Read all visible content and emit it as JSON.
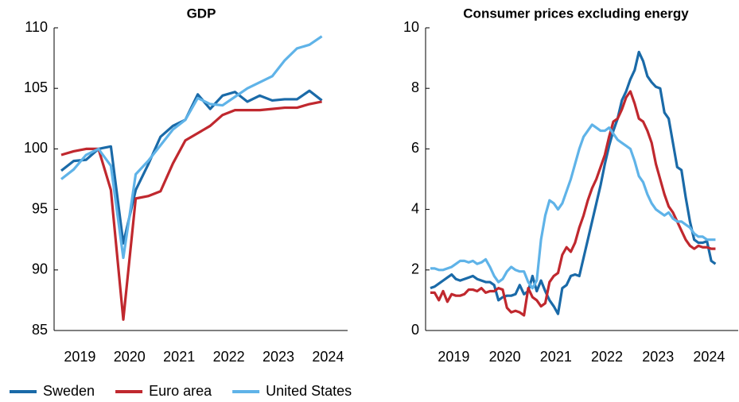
{
  "chart_data": [
    {
      "type": "line",
      "title": "GDP",
      "categories": [
        null,
        "2019",
        null,
        null,
        null,
        "2020",
        null,
        null,
        null,
        "2021",
        null,
        null,
        null,
        "2022",
        null,
        null,
        null,
        "2023",
        null,
        null,
        null,
        "2024"
      ],
      "ylim": [
        85,
        110
      ],
      "yticks": [
        85,
        90,
        95,
        100,
        105,
        110
      ],
      "series": [
        {
          "name": "Sweden",
          "color": "#1a6aa8",
          "values": [
            98.2,
            99.0,
            99.1,
            100.0,
            100.2,
            92.2,
            96.6,
            98.7,
            101.0,
            101.9,
            102.4,
            104.5,
            103.3,
            104.4,
            104.7,
            103.9,
            104.4,
            104.0,
            104.1,
            104.1,
            104.8,
            104.0
          ]
        },
        {
          "name": "Euro area",
          "color": "#c0282e",
          "values": [
            99.5,
            99.8,
            100.0,
            100.0,
            96.6,
            85.9,
            95.9,
            96.1,
            96.5,
            98.8,
            100.7,
            101.3,
            101.9,
            102.8,
            103.2,
            103.2,
            103.2,
            103.3,
            103.4,
            103.4,
            103.7,
            103.9
          ]
        },
        {
          "name": "United States",
          "color": "#5fb3e8",
          "values": [
            97.5,
            98.3,
            99.5,
            100.0,
            98.6,
            91.0,
            97.9,
            99.0,
            100.3,
            101.6,
            102.4,
            104.2,
            103.7,
            103.6,
            104.3,
            105.0,
            105.5,
            106.0,
            107.3,
            108.3,
            108.6,
            109.3
          ]
        }
      ]
    },
    {
      "type": "line",
      "title": "Consumer prices excluding energy",
      "categories": [
        null,
        null,
        null,
        null,
        null,
        "2019",
        null,
        null,
        null,
        null,
        null,
        null,
        null,
        null,
        null,
        null,
        null,
        "2020",
        null,
        null,
        null,
        null,
        null,
        null,
        null,
        null,
        null,
        null,
        null,
        "2021",
        null,
        null,
        null,
        null,
        null,
        null,
        null,
        null,
        null,
        null,
        null,
        "2022",
        null,
        null,
        null,
        null,
        null,
        null,
        null,
        null,
        null,
        null,
        null,
        "2023",
        null,
        null,
        null,
        null,
        null,
        null,
        null,
        null,
        null,
        null,
        null,
        "2024",
        null,
        null
      ],
      "ylim": [
        0,
        10
      ],
      "yticks": [
        0,
        2,
        4,
        6,
        8,
        10
      ],
      "series": [
        {
          "color": "#1a6aa8",
          "values": [
            1.4,
            1.45,
            1.55,
            1.65,
            1.75,
            1.85,
            1.7,
            1.65,
            1.7,
            1.75,
            1.8,
            1.7,
            1.65,
            1.6,
            1.6,
            1.5,
            1.0,
            1.1,
            1.15,
            1.15,
            1.2,
            1.5,
            1.2,
            1.3,
            1.8,
            1.3,
            1.65,
            1.3,
            1.0,
            0.8,
            0.55,
            1.4,
            1.5,
            1.8,
            1.85,
            1.8,
            2.4,
            3.0,
            3.6,
            4.2,
            4.8,
            5.5,
            6.1,
            6.6,
            7.0,
            7.6,
            7.9,
            8.3,
            8.6,
            9.2,
            8.9,
            8.4,
            8.2,
            8.05,
            8.0,
            7.2,
            7.0,
            6.2,
            5.4,
            5.3,
            4.4,
            3.6,
            3.0,
            2.9,
            2.9,
            2.95,
            2.3,
            2.2
          ]
        },
        {
          "color": "#c0282e",
          "values": [
            1.25,
            1.25,
            1.0,
            1.3,
            0.95,
            1.2,
            1.15,
            1.15,
            1.2,
            1.35,
            1.35,
            1.3,
            1.4,
            1.25,
            1.3,
            1.3,
            1.4,
            1.35,
            0.75,
            0.6,
            0.65,
            0.6,
            0.5,
            1.4,
            1.1,
            1.0,
            0.8,
            0.9,
            1.6,
            1.8,
            1.9,
            2.5,
            2.75,
            2.6,
            2.9,
            3.4,
            3.8,
            4.3,
            4.7,
            5.0,
            5.4,
            5.8,
            6.4,
            6.9,
            7.0,
            7.3,
            7.7,
            7.9,
            7.5,
            7.0,
            6.9,
            6.6,
            6.2,
            5.5,
            5.0,
            4.5,
            4.1,
            3.9,
            3.6,
            3.3,
            3.0,
            2.8,
            2.7,
            2.8,
            2.75,
            2.75,
            2.7,
            2.7
          ]
        },
        {
          "color": "#5fb3e8",
          "values": [
            2.05,
            2.05,
            2.0,
            2.0,
            2.05,
            2.1,
            2.2,
            2.3,
            2.3,
            2.25,
            2.3,
            2.2,
            2.25,
            2.35,
            2.1,
            1.8,
            1.6,
            1.7,
            1.95,
            2.1,
            2.0,
            1.95,
            1.95,
            1.6,
            1.4,
            1.65,
            3.0,
            3.8,
            4.3,
            4.2,
            4.0,
            4.2,
            4.6,
            5.0,
            5.5,
            6.0,
            6.4,
            6.6,
            6.8,
            6.7,
            6.6,
            6.6,
            6.7,
            6.5,
            6.3,
            6.2,
            6.1,
            6.0,
            5.6,
            5.1,
            4.9,
            4.5,
            4.2,
            4.0,
            3.9,
            3.8,
            3.9,
            3.7,
            3.6,
            3.6,
            3.5,
            3.4,
            3.2,
            3.1,
            3.1,
            3.0,
            3.0,
            3.0
          ]
        }
      ]
    }
  ]
}
